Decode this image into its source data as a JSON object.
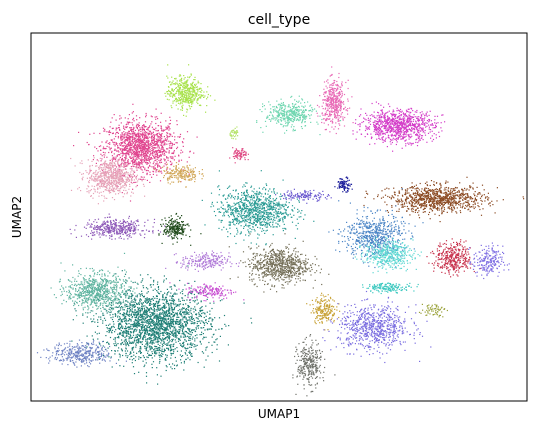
{
  "chart_data": {
    "type": "scatter",
    "title": "cell_type",
    "xlabel": "UMAP1",
    "ylabel": "UMAP2",
    "xlim": [
      0,
      100
    ],
    "ylim": [
      0,
      100
    ],
    "grid": false,
    "legend": "none",
    "ticks": "none",
    "clusters": [
      {
        "name": "pink-upper-left",
        "color": "#e0458f",
        "center": [
          22,
          69
        ],
        "spread": [
          6,
          6
        ],
        "points": 1400
      },
      {
        "name": "light-pink-left",
        "color": "#e6a3b8",
        "center": [
          16,
          61
        ],
        "spread": [
          4,
          4
        ],
        "points": 650
      },
      {
        "name": "lime-top",
        "color": "#a7e24a",
        "center": [
          31,
          84
        ],
        "spread": [
          3,
          3.5
        ],
        "points": 450
      },
      {
        "name": "tan",
        "color": "#d2a85a",
        "center": [
          30,
          62
        ],
        "spread": [
          3,
          2
        ],
        "points": 200
      },
      {
        "name": "small-pink",
        "color": "#e04d86",
        "center": [
          42,
          67
        ],
        "spread": [
          1.2,
          1.5
        ],
        "points": 80
      },
      {
        "name": "small-lime",
        "color": "#b6e36c",
        "center": [
          41,
          73
        ],
        "spread": [
          0.8,
          1
        ],
        "points": 40
      },
      {
        "name": "purple-left",
        "color": "#8e59b8",
        "center": [
          17,
          47
        ],
        "spread": [
          5.5,
          2
        ],
        "points": 380
      },
      {
        "name": "dark-green-small",
        "color": "#1f4a1a",
        "center": [
          29,
          47
        ],
        "spread": [
          2,
          2.5
        ],
        "points": 220
      },
      {
        "name": "teal-big-lower",
        "color": "#1f7f76",
        "center": [
          25,
          21
        ],
        "spread": [
          9,
          8
        ],
        "points": 2200
      },
      {
        "name": "seagreen-lower-left",
        "color": "#5fb4a0",
        "center": [
          13,
          30
        ],
        "spread": [
          5,
          4
        ],
        "points": 700
      },
      {
        "name": "slate-blue-lower-left",
        "color": "#6f83c4",
        "center": [
          10,
          13
        ],
        "spread": [
          5,
          2.5
        ],
        "points": 350
      },
      {
        "name": "light-purple-mid",
        "color": "#b07ad8",
        "center": [
          35,
          38
        ],
        "spread": [
          4,
          2
        ],
        "points": 220
      },
      {
        "name": "magenta-mid",
        "color": "#c94fd2",
        "center": [
          36,
          30
        ],
        "spread": [
          4,
          1.8
        ],
        "points": 160
      },
      {
        "name": "teal-center",
        "color": "#2a9b94",
        "center": [
          45,
          52
        ],
        "spread": [
          6,
          5
        ],
        "points": 900
      },
      {
        "name": "pink-top-center",
        "color": "#e86ab6",
        "center": [
          61,
          81
        ],
        "spread": [
          2,
          5
        ],
        "points": 420
      },
      {
        "name": "mint-top-center",
        "color": "#6fd6b0",
        "center": [
          52,
          78
        ],
        "spread": [
          4,
          3
        ],
        "points": 380
      },
      {
        "name": "magenta-top-right",
        "color": "#d43fc9",
        "center": [
          74,
          75
        ],
        "spread": [
          6,
          3.5
        ],
        "points": 900
      },
      {
        "name": "brown-right",
        "color": "#8b4a22",
        "center": [
          82,
          55
        ],
        "spread": [
          8,
          3
        ],
        "points": 900
      },
      {
        "name": "steel-blue-center",
        "color": "#4c86c6",
        "center": [
          69,
          45
        ],
        "spread": [
          5,
          5
        ],
        "points": 600
      },
      {
        "name": "cyan-center",
        "color": "#5cd7d2",
        "center": [
          72,
          40
        ],
        "spread": [
          4,
          3
        ],
        "points": 400
      },
      {
        "name": "crimson-right",
        "color": "#c8344e",
        "center": [
          85,
          39
        ],
        "spread": [
          3,
          3.5
        ],
        "points": 350
      },
      {
        "name": "periwinkle-right",
        "color": "#7e6ee3",
        "center": [
          92,
          38
        ],
        "spread": [
          2.5,
          3.5
        ],
        "points": 200
      },
      {
        "name": "olive-gray-center",
        "color": "#76715a",
        "center": [
          50,
          37
        ],
        "spread": [
          5,
          4
        ],
        "points": 750
      },
      {
        "name": "goldenrod-small",
        "color": "#c8a236",
        "center": [
          59,
          25
        ],
        "spread": [
          2,
          3
        ],
        "points": 200
      },
      {
        "name": "slate-blue-lower",
        "color": "#7b6ee0",
        "center": [
          69,
          20
        ],
        "spread": [
          6,
          5
        ],
        "points": 700
      },
      {
        "name": "gray-bottom",
        "color": "#71736c",
        "center": [
          56,
          10
        ],
        "spread": [
          2,
          5
        ],
        "points": 300
      },
      {
        "name": "navy-small",
        "color": "#1d1f9c",
        "center": [
          63,
          59
        ],
        "spread": [
          1.2,
          1.5
        ],
        "points": 90
      },
      {
        "name": "turquoise-streak",
        "color": "#3ec9c0",
        "center": [
          72,
          31
        ],
        "spread": [
          4,
          1
        ],
        "points": 150
      },
      {
        "name": "blue-violet-streak",
        "color": "#6a59cf",
        "center": [
          55,
          56
        ],
        "spread": [
          4,
          1.2
        ],
        "points": 120
      },
      {
        "name": "olive-small-right",
        "color": "#9aa23a",
        "center": [
          81,
          25
        ],
        "spread": [
          2,
          1.5
        ],
        "points": 60
      }
    ]
  }
}
